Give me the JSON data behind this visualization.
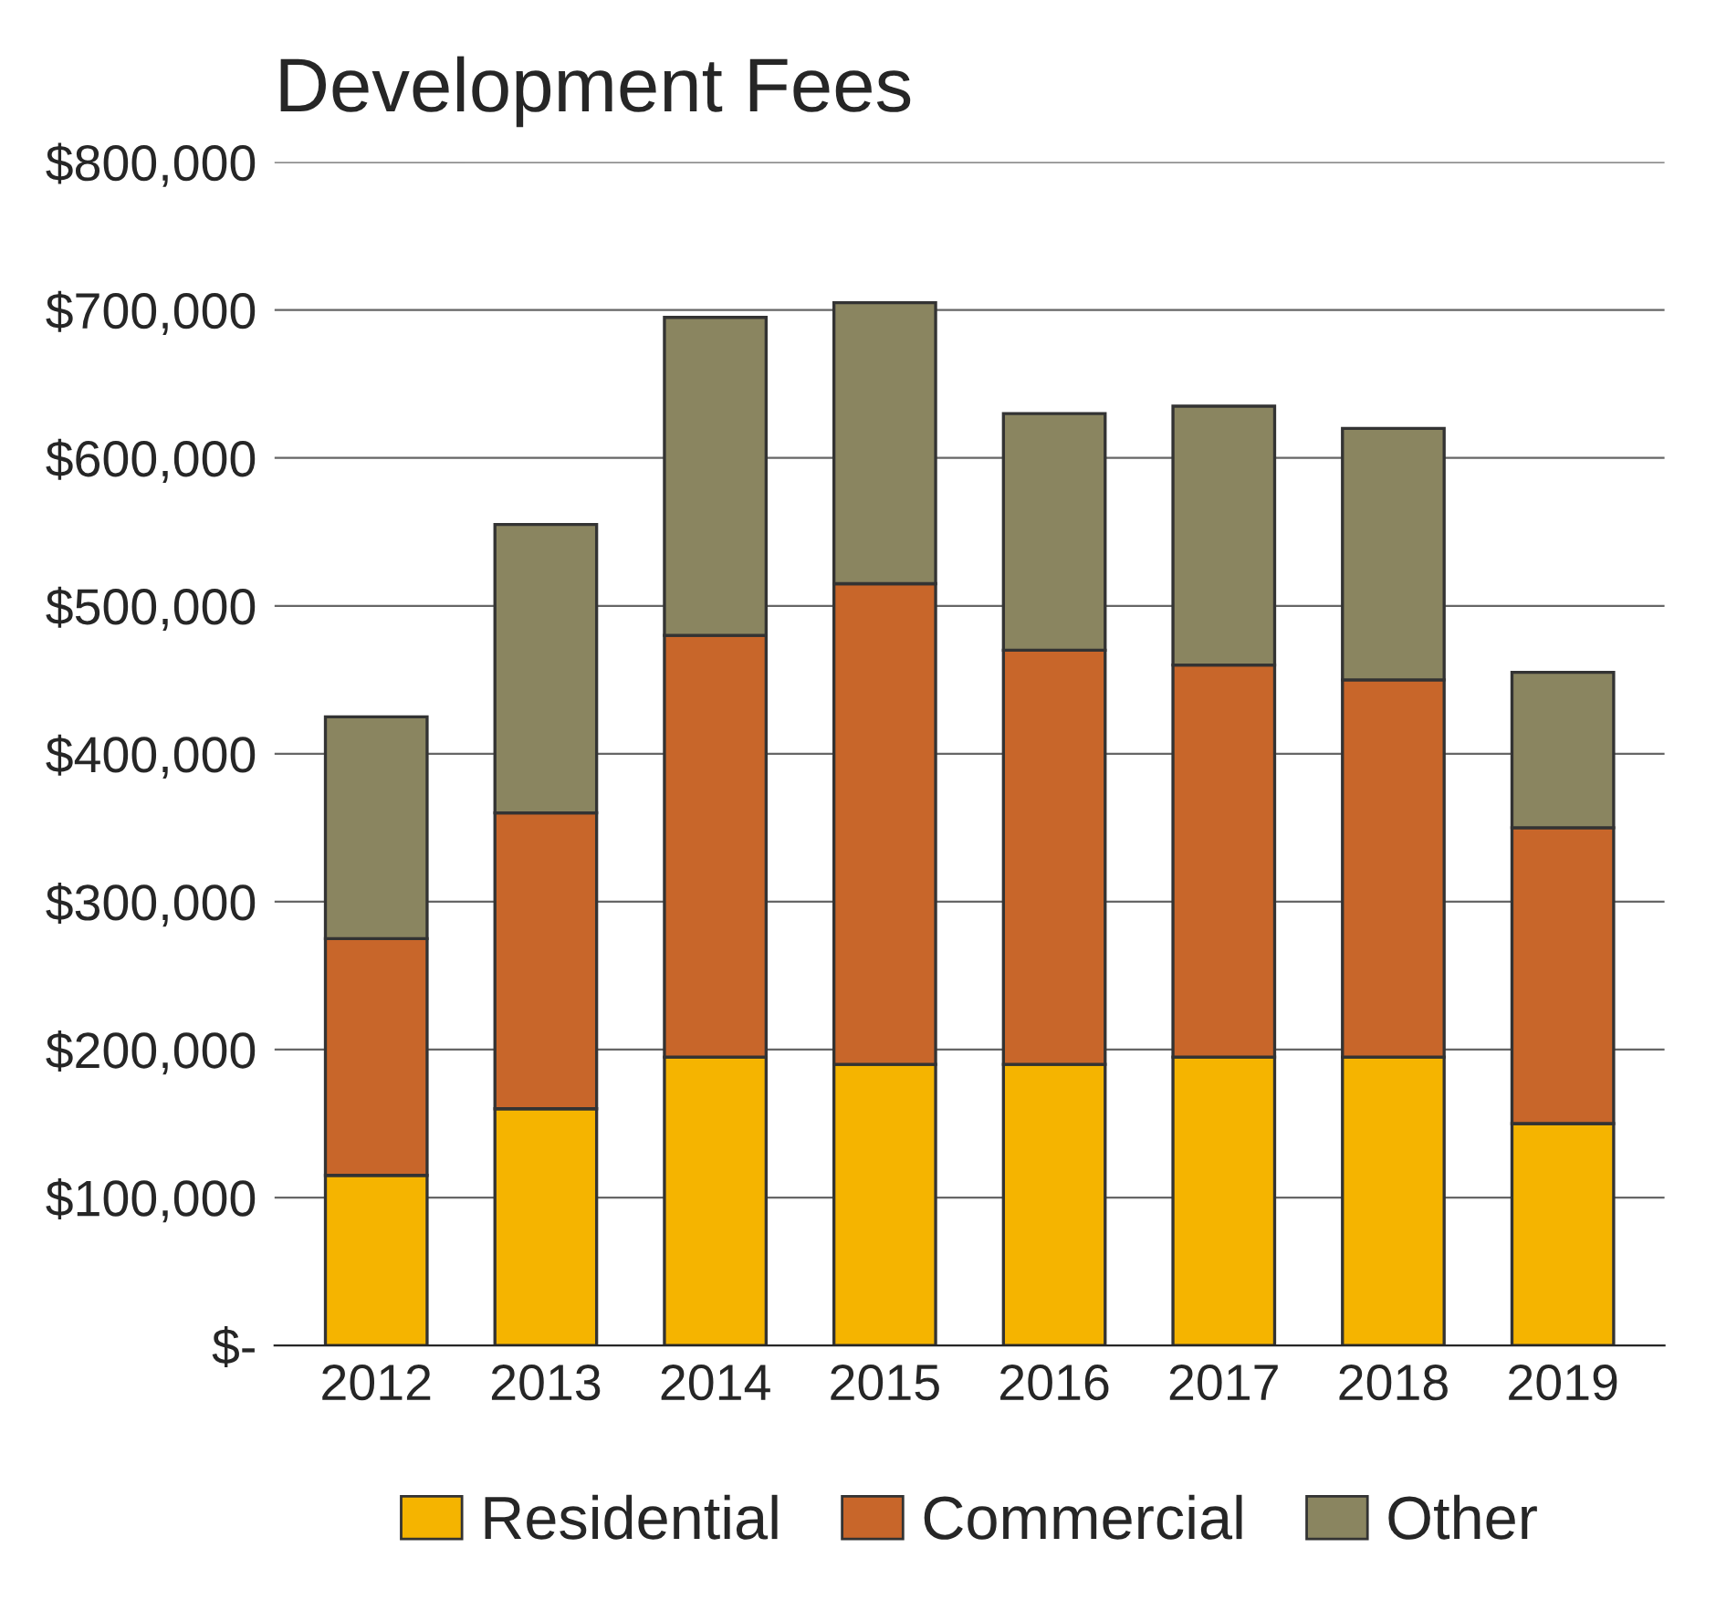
{
  "chart_data": {
    "type": "bar",
    "title": "Development Fees",
    "stacked": true,
    "categories": [
      "2012",
      "2013",
      "2014",
      "2015",
      "2016",
      "2017",
      "2018",
      "2019"
    ],
    "series": [
      {
        "name": "Residential",
        "color": "#f5b400",
        "values": [
          115000,
          160000,
          195000,
          190000,
          190000,
          195000,
          195000,
          150000
        ]
      },
      {
        "name": "Commercial",
        "color": "#c8662a",
        "values": [
          160000,
          200000,
          285000,
          325000,
          280000,
          265000,
          255000,
          200000
        ]
      },
      {
        "name": "Other",
        "color": "#8a8560",
        "values": [
          150000,
          195000,
          215000,
          190000,
          160000,
          175000,
          170000,
          105000
        ]
      }
    ],
    "ylim": [
      0,
      800000
    ],
    "yticks": [
      {
        "value": 0,
        "label": "$-"
      },
      {
        "value": 100000,
        "label": "$100,000"
      },
      {
        "value": 200000,
        "label": "$200,000"
      },
      {
        "value": 300000,
        "label": "$300,000"
      },
      {
        "value": 400000,
        "label": "$400,000"
      },
      {
        "value": 500000,
        "label": "$500,000"
      },
      {
        "value": 600000,
        "label": "$600,000"
      },
      {
        "value": 700000,
        "label": "$700,000"
      },
      {
        "value": 800000,
        "label": "$800,000"
      }
    ],
    "grid": "y",
    "legend": "bottom"
  }
}
